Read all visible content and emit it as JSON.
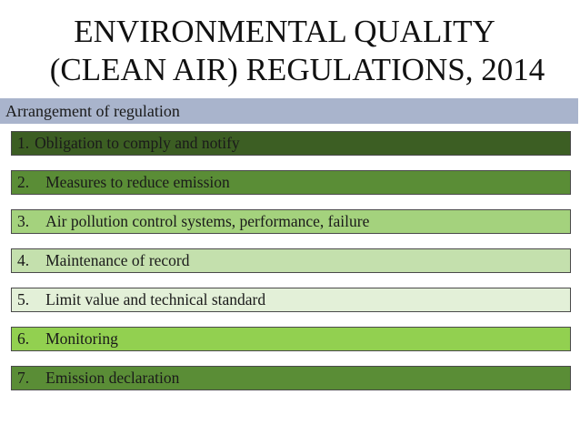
{
  "slide": {
    "title_line1": "ENVIRONMENTAL QUALITY",
    "title_line2": "(CLEAN AIR) REGULATIONS, 2014",
    "subheading": "Arrangement of regulation"
  },
  "items": [
    {
      "number": "1.",
      "text": "Obligation to comply and notify",
      "color": "#3c5e23"
    },
    {
      "number": "2.",
      "text": "Measures to reduce emission",
      "color": "#5a8d36"
    },
    {
      "number": "3.",
      "text": "Air pollution control systems, performance, failure",
      "color": "#a4d27d"
    },
    {
      "number": "4.",
      "text": "Maintenance of record",
      "color": "#c4e0ad"
    },
    {
      "number": "5.",
      "text": "Limit value and technical standard",
      "color": "#e3f0d8"
    },
    {
      "number": "6.",
      "text": "Monitoring",
      "color": "#92d050"
    },
    {
      "number": "7.",
      "text": "Emission declaration",
      "color": "#5a8d36"
    }
  ]
}
